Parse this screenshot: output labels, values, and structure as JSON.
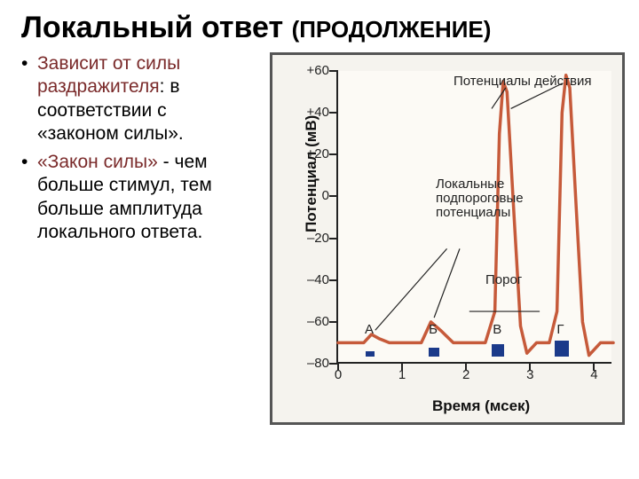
{
  "title_main": "Локальный ответ",
  "title_sub": "(ПРОДОЛЖЕНИЕ)",
  "bullets": [
    {
      "emph": "Зависит от силы раздражителя",
      "plain": ": в соответствии с «законом силы»."
    },
    {
      "emph": "«Закон силы»",
      "plain": " - чем больше стимул, тем больше амплитуда локального ответа."
    }
  ],
  "chart": {
    "type": "line",
    "ylabel": "Потенциал (мВ)",
    "xlabel": "Время (мсек)",
    "ylim": [
      -80,
      60
    ],
    "yticks": [
      60,
      40,
      20,
      0,
      -20,
      -40,
      -60,
      -80
    ],
    "ytick_labels": [
      "+60",
      "+40",
      "+20",
      "0",
      "–20",
      "–40",
      "–60",
      "–80"
    ],
    "xlim": [
      0,
      4.3
    ],
    "xticks": [
      0,
      1,
      2,
      3,
      4
    ],
    "resting": -70,
    "threshold": -55,
    "curve_color": "#c65a3a",
    "curve_width": 3.5,
    "background_color": "#fcfaf5",
    "frame_color": "#555555",
    "stim_bar_color": "#1b3a8a",
    "annotation_color": "#222222",
    "annotations": {
      "action_potentials": "Потенциалы действия",
      "subthreshold": "Локальные\nподпороговые\nпотенциалы",
      "threshold_label": "Порог"
    },
    "stimuli": [
      {
        "label": "А",
        "x": 0.5,
        "height": 6,
        "width": 10
      },
      {
        "label": "Б",
        "x": 1.5,
        "height": 10,
        "width": 12
      },
      {
        "label": "В",
        "x": 2.5,
        "height": 14,
        "width": 14
      },
      {
        "label": "Г",
        "x": 3.5,
        "height": 18,
        "width": 16
      }
    ],
    "series": [
      [
        0.0,
        -70
      ],
      [
        0.4,
        -70
      ],
      [
        0.52,
        -66
      ],
      [
        0.64,
        -68
      ],
      [
        0.8,
        -70
      ],
      [
        1.3,
        -70
      ],
      [
        1.45,
        -60
      ],
      [
        1.6,
        -64
      ],
      [
        1.8,
        -70
      ],
      [
        2.3,
        -70
      ],
      [
        2.45,
        -55
      ],
      [
        2.52,
        30
      ],
      [
        2.58,
        55
      ],
      [
        2.64,
        50
      ],
      [
        2.75,
        -10
      ],
      [
        2.85,
        -62
      ],
      [
        2.95,
        -75
      ],
      [
        3.1,
        -70
      ],
      [
        3.3,
        -70
      ],
      [
        3.42,
        -55
      ],
      [
        3.5,
        40
      ],
      [
        3.56,
        58
      ],
      [
        3.62,
        52
      ],
      [
        3.72,
        -5
      ],
      [
        3.82,
        -60
      ],
      [
        3.92,
        -76
      ],
      [
        4.1,
        -70
      ],
      [
        4.3,
        -70
      ]
    ]
  }
}
